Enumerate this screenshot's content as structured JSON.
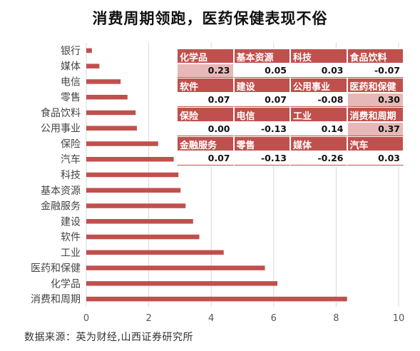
{
  "title": "消费周期领跑，医药保健表现不俗",
  "source": "数据来源：英为财经,山西证券研究所",
  "colors": {
    "bar": "#c0504d",
    "header": "#c0504d",
    "highlight": "#e6b9b8"
  },
  "chart_data": {
    "type": "bar",
    "orientation": "horizontal",
    "categories": [
      "银行",
      "媒体",
      "电信",
      "零售",
      "食品饮料",
      "公用事业",
      "保险",
      "汽车",
      "科技",
      "基本资源",
      "金融服务",
      "建设",
      "软件",
      "工业",
      "医药和保健",
      "化学品",
      "消费和周期"
    ],
    "values": [
      0.18,
      0.42,
      1.1,
      1.32,
      1.58,
      1.62,
      2.3,
      2.8,
      2.95,
      3.02,
      3.18,
      3.42,
      3.62,
      4.4,
      5.72,
      6.12,
      8.35
    ],
    "xlim": [
      0,
      10
    ],
    "xticks": [
      0,
      2,
      4,
      6,
      8,
      10
    ],
    "grid": true
  },
  "table": {
    "rows": [
      [
        {
          "label": "化学品",
          "value": "0.23",
          "hl": true
        },
        {
          "label": "基本资源",
          "value": "0.05"
        },
        {
          "label": "科技",
          "value": "0.03"
        },
        {
          "label": "食品饮料",
          "value": "-0.07"
        }
      ],
      [
        {
          "label": "软件",
          "value": "0.07"
        },
        {
          "label": "建设",
          "value": "0.07"
        },
        {
          "label": "公用事业",
          "value": "-0.08"
        },
        {
          "label": "医药和保健",
          "value": "0.30",
          "hl": true
        }
      ],
      [
        {
          "label": "保险",
          "value": "0.00"
        },
        {
          "label": "电信",
          "value": "-0.13"
        },
        {
          "label": "工业",
          "value": "0.14"
        },
        {
          "label": "消费和周期",
          "value": "0.37",
          "hl": true
        }
      ],
      [
        {
          "label": "金融服务",
          "value": "0.07"
        },
        {
          "label": "零售",
          "value": "-0.13"
        },
        {
          "label": "媒体",
          "value": "-0.26"
        },
        {
          "label": "汽车",
          "value": "0.03"
        }
      ]
    ]
  }
}
